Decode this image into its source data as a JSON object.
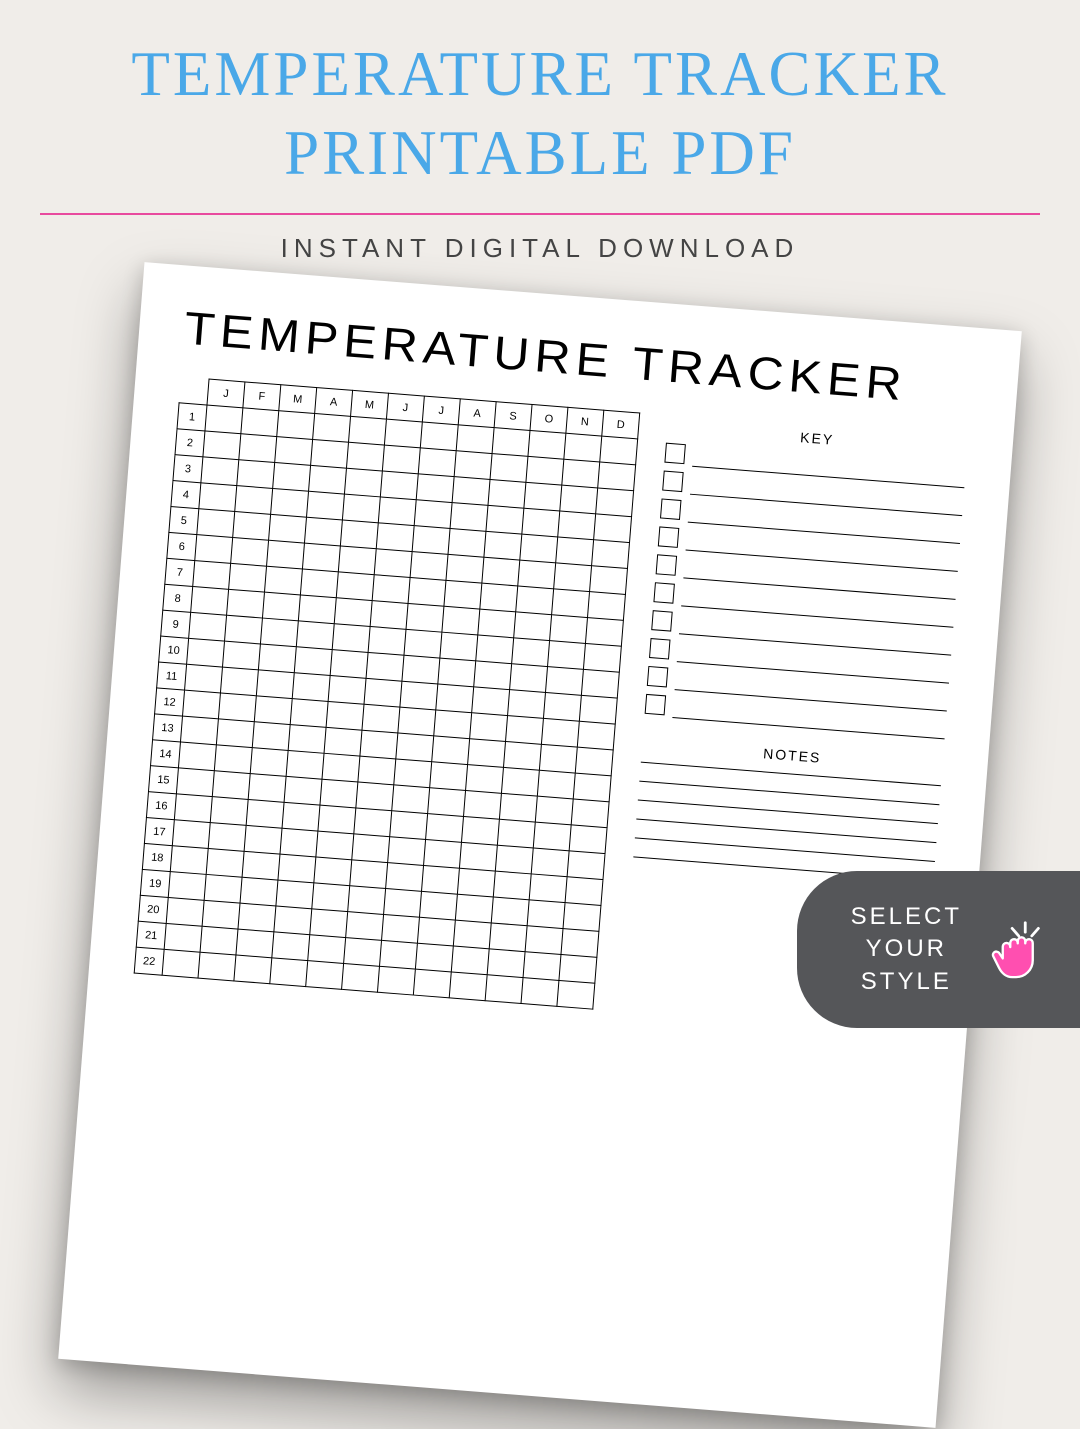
{
  "header": {
    "title_line1": "TEMPERATURE TRACKER",
    "title_line2": "PRINTABLE PDF",
    "subtitle": "INSTANT DIGITAL DOWNLOAD",
    "title_color": "#4aa8e8",
    "divider_color": "#e84a9e",
    "subtitle_color": "#444444",
    "background_color": "#f0ede9"
  },
  "sheet": {
    "title": "TEMPERATURE TRACKER",
    "months": [
      "J",
      "F",
      "M",
      "A",
      "M",
      "J",
      "J",
      "A",
      "S",
      "O",
      "N",
      "D"
    ],
    "days": [
      "1",
      "2",
      "3",
      "4",
      "5",
      "6",
      "7",
      "8",
      "9",
      "10",
      "11",
      "12",
      "13",
      "14",
      "15",
      "16",
      "17",
      "18",
      "19",
      "20",
      "21",
      "22"
    ],
    "key_heading": "KEY",
    "notes_heading": "NOTES",
    "key_row_count": 10,
    "notes_line_count": 6,
    "cell_border_color": "#000000",
    "sheet_bg": "#ffffff"
  },
  "cta": {
    "line1": "SELECT",
    "line2": "YOUR",
    "line3": "STYLE",
    "bg_color": "#555659",
    "text_color": "#ffffff",
    "icon_fill": "#ff4fb0",
    "icon_stroke": "#ffffff",
    "spark_stroke": "#ffffff"
  }
}
